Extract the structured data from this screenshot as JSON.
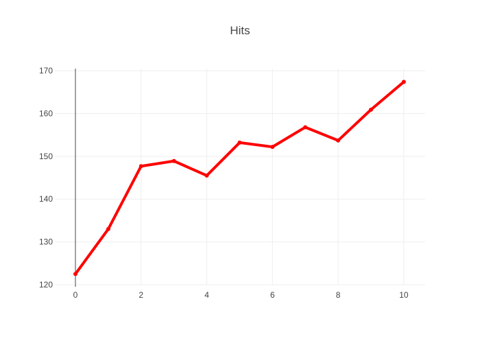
{
  "chart_data": {
    "type": "line",
    "title": "Hits",
    "xlabel": "",
    "ylabel": "",
    "xlim": [
      0,
      10.65
    ],
    "ylim": [
      120,
      170.5
    ],
    "x_ticks": [
      0,
      2,
      4,
      6,
      8,
      10
    ],
    "y_ticks": [
      120,
      130,
      140,
      150,
      160,
      170
    ],
    "grid": true,
    "series": [
      {
        "color": "#ff0000",
        "x": [
          0,
          1,
          2,
          3,
          4,
          5,
          6,
          7,
          8,
          9,
          10
        ],
        "y": [
          122.5,
          133,
          147.7,
          148.9,
          145.5,
          153.2,
          152.2,
          156.8,
          153.7,
          160.9,
          167.4
        ]
      }
    ]
  }
}
